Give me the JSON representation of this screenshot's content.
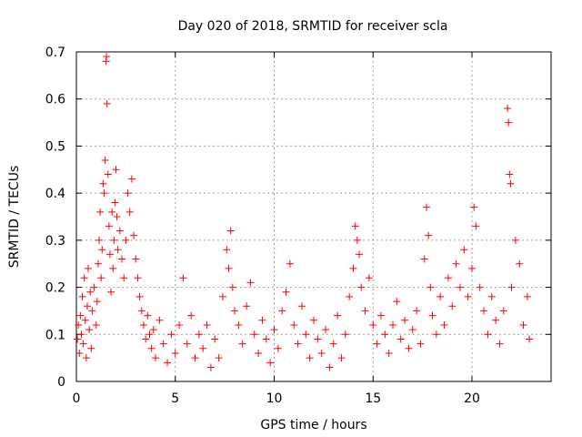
{
  "chart_data": {
    "type": "scatter",
    "title": "Day 020 of 2018, SRMTID for receiver scla",
    "xlabel": "GPS time / hours",
    "ylabel": "SRMTID / TECUs",
    "xlim": [
      0,
      24
    ],
    "ylim": [
      0,
      0.7
    ],
    "xticks": [
      0,
      5,
      10,
      15,
      20
    ],
    "yticks": [
      0,
      0.1,
      0.2,
      0.3,
      0.4,
      0.5,
      0.6,
      0.7
    ],
    "xtick_labels": [
      "0",
      "5",
      "10",
      "15",
      "20"
    ],
    "ytick_labels": [
      "0",
      "0.1",
      "0.2",
      "0.3",
      "0.4",
      "0.5",
      "0.6",
      "0.7"
    ],
    "grid": true,
    "marker": "plus",
    "color": "#ff0000",
    "series": [
      {
        "name": "SRMTID",
        "points": [
          [
            0.05,
            0.09
          ],
          [
            0.1,
            0.12
          ],
          [
            0.15,
            0.06
          ],
          [
            0.2,
            0.14
          ],
          [
            0.25,
            0.1
          ],
          [
            0.3,
            0.18
          ],
          [
            0.35,
            0.08
          ],
          [
            0.4,
            0.22
          ],
          [
            0.45,
            0.13
          ],
          [
            0.5,
            0.05
          ],
          [
            0.55,
            0.16
          ],
          [
            0.6,
            0.24
          ],
          [
            0.65,
            0.11
          ],
          [
            0.7,
            0.19
          ],
          [
            0.75,
            0.07
          ],
          [
            0.8,
            0.15
          ],
          [
            0.9,
            0.2
          ],
          [
            1.0,
            0.12
          ],
          [
            1.05,
            0.17
          ],
          [
            1.1,
            0.25
          ],
          [
            1.15,
            0.3
          ],
          [
            1.2,
            0.36
          ],
          [
            1.25,
            0.22
          ],
          [
            1.3,
            0.28
          ],
          [
            1.35,
            0.42
          ],
          [
            1.4,
            0.4
          ],
          [
            1.45,
            0.47
          ],
          [
            1.5,
            0.68
          ],
          [
            1.52,
            0.69
          ],
          [
            1.55,
            0.59
          ],
          [
            1.6,
            0.44
          ],
          [
            1.65,
            0.33
          ],
          [
            1.7,
            0.27
          ],
          [
            1.75,
            0.19
          ],
          [
            1.8,
            0.36
          ],
          [
            1.85,
            0.24
          ],
          [
            1.9,
            0.3
          ],
          [
            1.95,
            0.38
          ],
          [
            2.0,
            0.45
          ],
          [
            2.05,
            0.35
          ],
          [
            2.1,
            0.28
          ],
          [
            2.2,
            0.32
          ],
          [
            2.3,
            0.26
          ],
          [
            2.4,
            0.22
          ],
          [
            2.5,
            0.3
          ],
          [
            2.6,
            0.4
          ],
          [
            2.7,
            0.36
          ],
          [
            2.8,
            0.43
          ],
          [
            2.9,
            0.31
          ],
          [
            3.0,
            0.26
          ],
          [
            3.1,
            0.22
          ],
          [
            3.2,
            0.18
          ],
          [
            3.3,
            0.15
          ],
          [
            3.4,
            0.12
          ],
          [
            3.5,
            0.09
          ],
          [
            3.6,
            0.14
          ],
          [
            3.7,
            0.1
          ],
          [
            3.8,
            0.07
          ],
          [
            3.9,
            0.11
          ],
          [
            4.0,
            0.05
          ],
          [
            4.2,
            0.13
          ],
          [
            4.4,
            0.08
          ],
          [
            4.6,
            0.04
          ],
          [
            4.8,
            0.1
          ],
          [
            5.0,
            0.06
          ],
          [
            5.2,
            0.12
          ],
          [
            5.4,
            0.22
          ],
          [
            5.6,
            0.08
          ],
          [
            5.8,
            0.14
          ],
          [
            6.0,
            0.05
          ],
          [
            6.2,
            0.1
          ],
          [
            6.4,
            0.07
          ],
          [
            6.6,
            0.12
          ],
          [
            6.8,
            0.03
          ],
          [
            7.0,
            0.09
          ],
          [
            7.2,
            0.05
          ],
          [
            7.4,
            0.18
          ],
          [
            7.6,
            0.28
          ],
          [
            7.7,
            0.24
          ],
          [
            7.8,
            0.32
          ],
          [
            7.9,
            0.2
          ],
          [
            8.0,
            0.15
          ],
          [
            8.2,
            0.12
          ],
          [
            8.4,
            0.08
          ],
          [
            8.6,
            0.16
          ],
          [
            8.8,
            0.21
          ],
          [
            9.0,
            0.1
          ],
          [
            9.2,
            0.06
          ],
          [
            9.4,
            0.13
          ],
          [
            9.6,
            0.09
          ],
          [
            9.8,
            0.04
          ],
          [
            10.0,
            0.11
          ],
          [
            10.2,
            0.07
          ],
          [
            10.4,
            0.15
          ],
          [
            10.6,
            0.19
          ],
          [
            10.8,
            0.25
          ],
          [
            11.0,
            0.12
          ],
          [
            11.2,
            0.08
          ],
          [
            11.4,
            0.16
          ],
          [
            11.6,
            0.1
          ],
          [
            11.8,
            0.05
          ],
          [
            12.0,
            0.13
          ],
          [
            12.2,
            0.09
          ],
          [
            12.4,
            0.06
          ],
          [
            12.6,
            0.11
          ],
          [
            12.8,
            0.03
          ],
          [
            13.0,
            0.08
          ],
          [
            13.2,
            0.14
          ],
          [
            13.4,
            0.05
          ],
          [
            13.6,
            0.1
          ],
          [
            13.8,
            0.18
          ],
          [
            14.0,
            0.24
          ],
          [
            14.1,
            0.33
          ],
          [
            14.2,
            0.3
          ],
          [
            14.3,
            0.27
          ],
          [
            14.4,
            0.2
          ],
          [
            14.6,
            0.15
          ],
          [
            14.8,
            0.22
          ],
          [
            15.0,
            0.12
          ],
          [
            15.2,
            0.08
          ],
          [
            15.4,
            0.14
          ],
          [
            15.6,
            0.1
          ],
          [
            15.8,
            0.06
          ],
          [
            16.0,
            0.12
          ],
          [
            16.2,
            0.17
          ],
          [
            16.4,
            0.09
          ],
          [
            16.6,
            0.13
          ],
          [
            16.8,
            0.07
          ],
          [
            17.0,
            0.11
          ],
          [
            17.2,
            0.15
          ],
          [
            17.4,
            0.08
          ],
          [
            17.6,
            0.26
          ],
          [
            17.7,
            0.37
          ],
          [
            17.8,
            0.31
          ],
          [
            17.9,
            0.2
          ],
          [
            18.0,
            0.14
          ],
          [
            18.2,
            0.1
          ],
          [
            18.4,
            0.18
          ],
          [
            18.6,
            0.12
          ],
          [
            18.8,
            0.22
          ],
          [
            19.0,
            0.16
          ],
          [
            19.2,
            0.25
          ],
          [
            19.4,
            0.2
          ],
          [
            19.6,
            0.28
          ],
          [
            19.8,
            0.18
          ],
          [
            20.0,
            0.24
          ],
          [
            20.1,
            0.37
          ],
          [
            20.2,
            0.33
          ],
          [
            20.4,
            0.2
          ],
          [
            20.6,
            0.15
          ],
          [
            20.8,
            0.1
          ],
          [
            21.0,
            0.18
          ],
          [
            21.2,
            0.13
          ],
          [
            21.4,
            0.08
          ],
          [
            21.6,
            0.15
          ],
          [
            21.8,
            0.58
          ],
          [
            21.85,
            0.55
          ],
          [
            21.9,
            0.44
          ],
          [
            21.95,
            0.42
          ],
          [
            22.0,
            0.2
          ],
          [
            22.2,
            0.3
          ],
          [
            22.4,
            0.25
          ],
          [
            22.6,
            0.12
          ],
          [
            22.8,
            0.18
          ],
          [
            22.9,
            0.09
          ]
        ]
      }
    ]
  }
}
